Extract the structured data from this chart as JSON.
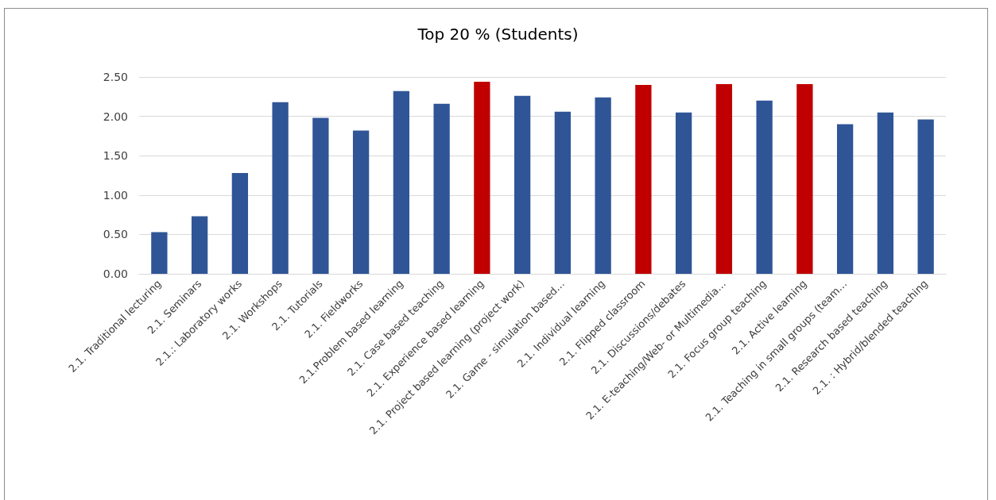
{
  "chart_data": {
    "type": "bar",
    "title": "Top 20 % (Students)",
    "categories": [
      "2.1. Traditional lecturing",
      "2.1. Seminars",
      "2.1.: Laboratory works",
      "2.1. Workshops",
      "2.1. Tutorials",
      "2.1. Fieldworks",
      "2.1.Problem based learning",
      "2.1. Case based teaching",
      "2.1. Experience based learning",
      "2.1. Project based learning (project work)",
      "2.1. Game - simulation based…",
      "2.1. Individual learning",
      "2.1. Flipped classroom",
      "2.1. Discussions/debates",
      "2.1. E-teaching/Web- or Multimedia…",
      "2.1. Focus group teaching",
      "2.1. Active learning",
      "2.1. Teaching in small groups (team…",
      "2.1. Research based teaching",
      "2.1. : Hybrid/blended teaching"
    ],
    "values": [
      0.53,
      0.73,
      1.28,
      2.18,
      1.98,
      1.82,
      2.32,
      2.16,
      2.44,
      2.26,
      2.06,
      2.24,
      2.4,
      2.05,
      2.41,
      2.2,
      2.41,
      1.9,
      2.05,
      1.96
    ],
    "colors": [
      "#2f5597",
      "#2f5597",
      "#2f5597",
      "#2f5597",
      "#2f5597",
      "#2f5597",
      "#2f5597",
      "#2f5597",
      "#c00000",
      "#2f5597",
      "#2f5597",
      "#2f5597",
      "#c00000",
      "#2f5597",
      "#c00000",
      "#2f5597",
      "#c00000",
      "#2f5597",
      "#2f5597",
      "#2f5597"
    ],
    "ylim": [
      0,
      2.5
    ],
    "yticks": [
      {
        "value": 0,
        "label": "0.00"
      },
      {
        "value": 0.5,
        "label": "0.50"
      },
      {
        "value": 1,
        "label": "1.00"
      },
      {
        "value": 1.5,
        "label": "1.50"
      },
      {
        "value": 2,
        "label": "2.00"
      },
      {
        "value": 2.5,
        "label": "2.50"
      }
    ],
    "grid": "y"
  }
}
